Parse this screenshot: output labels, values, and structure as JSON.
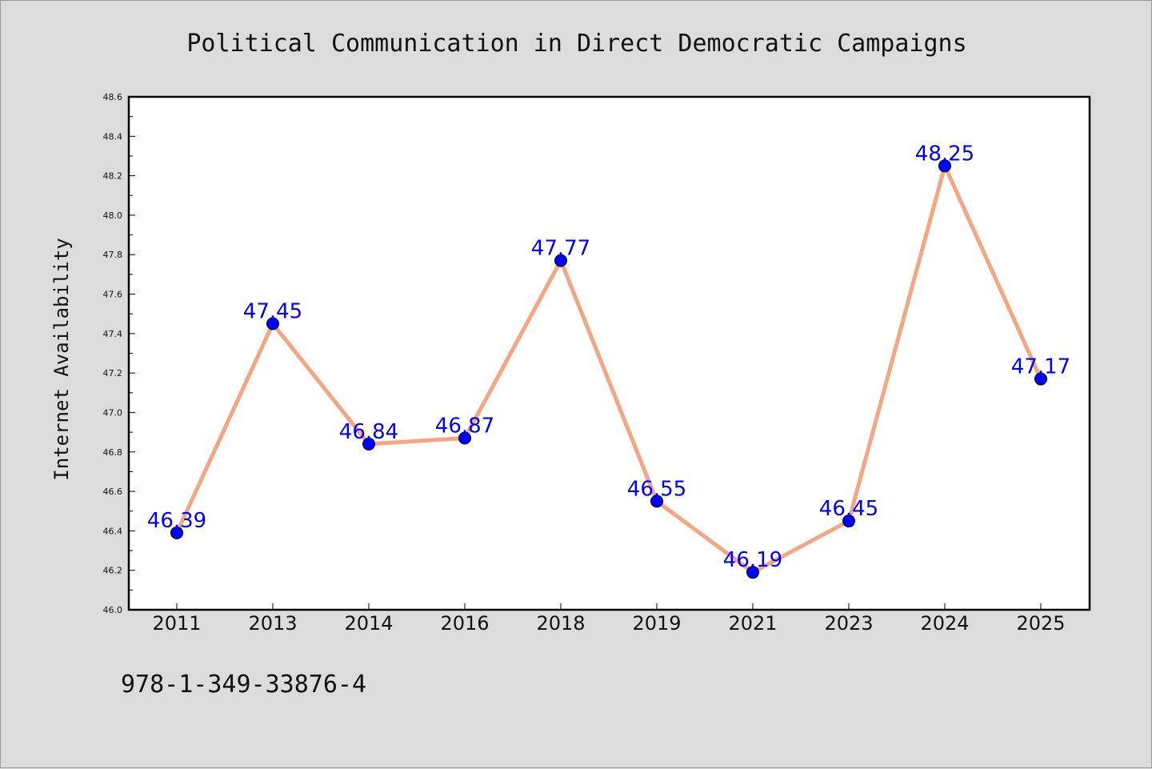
{
  "chart_data": {
    "type": "line",
    "title": "Political Communication in Direct Democratic Campaigns",
    "xlabel": "",
    "ylabel": "Internet Availability",
    "categories": [
      "2011",
      "2013",
      "2014",
      "2016",
      "2018",
      "2019",
      "2021",
      "2023",
      "2024",
      "2025"
    ],
    "series": [
      {
        "values": [
          46.39,
          47.45,
          46.84,
          46.87,
          47.77,
          46.55,
          46.19,
          46.45,
          48.25,
          47.17
        ],
        "line_color": "#f4a582",
        "marker_color": "#0000ff"
      }
    ],
    "data_labels": [
      "46.39",
      "47.45",
      "46.84",
      "46.87",
      "47.77",
      "46.55",
      "46.19",
      "46.45",
      "48.25",
      "47.17"
    ],
    "ylim": [
      46.0,
      48.6
    ],
    "yticks": [
      "46.0",
      "46.2",
      "46.4",
      "46.6",
      "46.8",
      "47.0",
      "47.2",
      "47.4",
      "47.6",
      "47.8",
      "48.0",
      "48.2",
      "48.4",
      "48.6"
    ],
    "grid": false,
    "legend": "none"
  },
  "annotation": {
    "text": "978-1-349-33876-4"
  }
}
